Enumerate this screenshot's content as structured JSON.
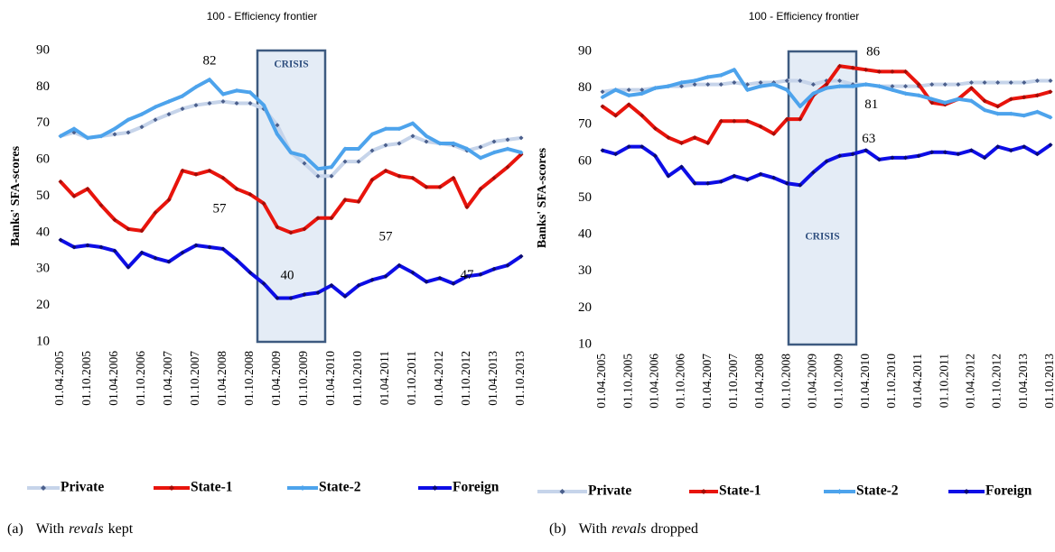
{
  "chart_data": [
    {
      "type": "line",
      "title": "100 - Efficiency frontier",
      "y_label": "Banks' SFA-scores",
      "shaded_label": "CRISIS",
      "caption": [
        "(a)",
        "With",
        "revals",
        "kept"
      ],
      "categories": [
        "01.04.2005",
        null,
        "01.10.2005",
        null,
        "01.04.2006",
        null,
        "01.10.2006",
        null,
        "01.04.2007",
        null,
        "01.10.2007",
        null,
        "01.04.2008",
        null,
        "01.10.2008",
        null,
        "01.04.2009",
        null,
        "01.10.2009",
        null,
        "01.04.2010",
        null,
        "01.10.2010",
        null,
        "01.04.2011",
        null,
        "01.10.2011",
        null,
        "01.04.2012",
        null,
        "01.10.2012",
        null,
        "01.04.2013",
        null,
        "01.10.2013"
      ],
      "ylim": [
        10,
        90
      ],
      "yticks": [
        10,
        20,
        30,
        40,
        50,
        60,
        70,
        80,
        90
      ],
      "grid": false,
      "legend": "bottom",
      "series": [
        {
          "name": "Private",
          "color": "#c6d4ea",
          "marker_color": "#4b5f8c",
          "values": [
            66.5,
            67.5,
            66,
            66.5,
            67,
            67.5,
            69,
            71,
            72.5,
            74,
            75,
            75.5,
            76,
            75.5,
            75.5,
            74,
            69.5,
            62,
            59,
            55.5,
            55.5,
            59.5,
            59.5,
            62.5,
            64,
            64.5,
            66.5,
            65,
            64.5,
            64,
            62.5,
            63.5,
            65,
            65.5,
            66
          ]
        },
        {
          "name": "State-1",
          "color": "#e8140c",
          "marker_color": "#a00d08",
          "label_color": "#e8140c",
          "values": [
            54,
            50,
            52,
            47.5,
            43.5,
            41,
            40.5,
            45.5,
            49,
            57,
            56,
            57,
            55,
            52,
            50.5,
            48,
            41.5,
            40,
            41,
            44,
            44,
            49,
            48.5,
            54.5,
            57,
            55.5,
            55,
            52.5,
            52.5,
            55,
            47,
            52,
            55,
            58,
            61.5
          ],
          "value_labels": [
            null,
            null,
            null,
            null,
            null,
            null,
            null,
            null,
            null,
            null,
            null,
            "57",
            null,
            null,
            null,
            null,
            null,
            "40",
            null,
            null,
            null,
            null,
            null,
            null,
            "57",
            null,
            null,
            null,
            null,
            null,
            "47",
            null,
            null,
            null,
            null
          ]
        },
        {
          "name": "State-2",
          "color": "#4da3ec",
          "marker_color": "#4da3ec",
          "label_color": "#000000",
          "values": [
            66.5,
            68.5,
            66,
            66.5,
            68.5,
            71,
            72.5,
            74.5,
            76,
            77.5,
            80,
            82,
            78,
            79,
            78.5,
            75,
            67,
            62,
            61,
            57.5,
            58,
            63,
            63,
            67,
            68.5,
            68.5,
            70,
            66.5,
            64.5,
            64.5,
            63,
            60.5,
            62,
            63,
            62
          ],
          "value_labels": [
            null,
            null,
            null,
            null,
            null,
            null,
            null,
            null,
            null,
            null,
            null,
            "82",
            null,
            null,
            null,
            null,
            null,
            null,
            null,
            null,
            null,
            null,
            null,
            null,
            null,
            null,
            null,
            null,
            null,
            null,
            null,
            null,
            null,
            null,
            null
          ]
        },
        {
          "name": "Foreign",
          "color": "#0d0de6",
          "marker_color": "#0a0a70",
          "values": [
            38,
            36,
            36.5,
            36,
            35,
            30.5,
            34.5,
            33,
            32,
            34.5,
            36.5,
            36,
            35.5,
            32.5,
            29,
            26,
            22,
            22,
            23,
            23.5,
            25.5,
            22.5,
            25.5,
            27,
            28,
            31,
            29,
            26.5,
            27.5,
            26,
            28,
            28.5,
            30,
            31,
            33.5
          ]
        }
      ]
    },
    {
      "type": "line",
      "title": "100 - Efficiency frontier",
      "y_label": "Banks' SFA-scores",
      "shaded_label": "CRISIS",
      "caption": [
        "(b)",
        "With",
        "revals",
        "dropped"
      ],
      "categories": [
        "01.04.2005",
        null,
        "01.10.2005",
        null,
        "01.04.2006",
        null,
        "01.10.2006",
        null,
        "01.04.2007",
        null,
        "01.10.2007",
        null,
        "01.04.2008",
        null,
        "01.10.2008",
        null,
        "01.04.2009",
        null,
        "01.10.2009",
        null,
        "01.04.2010",
        null,
        "01.10.2010",
        null,
        "01.04.2011",
        null,
        "01.10.2011",
        null,
        "01.04.2012",
        null,
        "01.10.2012",
        null,
        "01.04.2013",
        null,
        "01.10.2013"
      ],
      "ylim": [
        10,
        90
      ],
      "yticks": [
        10,
        20,
        30,
        40,
        50,
        60,
        70,
        80,
        90
      ],
      "grid": false,
      "legend": "bottom",
      "series": [
        {
          "name": "Private",
          "color": "#c6d4ea",
          "marker_color": "#4b5f8c",
          "values": [
            79,
            79.5,
            79.5,
            79.5,
            80,
            80.5,
            80.5,
            81,
            81,
            81,
            81.5,
            81,
            81.5,
            81.5,
            82,
            82,
            81,
            82,
            82,
            81,
            81,
            80.5,
            80.5,
            80.5,
            80.5,
            81,
            81,
            81,
            81.5,
            81.5,
            81.5,
            81.5,
            81.5,
            82,
            82
          ]
        },
        {
          "name": "State-1",
          "color": "#e8140c",
          "marker_color": "#a00d08",
          "label_color": "#e8140c",
          "values": [
            75,
            72.5,
            75.5,
            72.5,
            69,
            66.5,
            65,
            66.5,
            65,
            71,
            71,
            71,
            69.5,
            67.5,
            71.5,
            71.5,
            78,
            81,
            86,
            85.5,
            85,
            84.5,
            84.5,
            84.5,
            81,
            76,
            75.5,
            77,
            80,
            76.5,
            75,
            77,
            77.5,
            78,
            79
          ],
          "value_labels": [
            null,
            null,
            null,
            null,
            null,
            null,
            null,
            null,
            null,
            null,
            null,
            null,
            null,
            null,
            null,
            null,
            null,
            null,
            "86",
            null,
            null,
            null,
            null,
            null,
            null,
            null,
            null,
            null,
            null,
            null,
            null,
            null,
            null,
            null,
            null
          ]
        },
        {
          "name": "State-2",
          "color": "#4da3ec",
          "marker_color": "#4da3ec",
          "label_color": "#4a6fa5",
          "values": [
            77.5,
            79.5,
            78,
            78.5,
            80,
            80.5,
            81.5,
            82,
            83,
            83.5,
            85,
            79.5,
            80.5,
            81,
            79.5,
            75,
            78.5,
            80,
            80.5,
            80.5,
            81,
            80.5,
            79.5,
            78.5,
            78,
            77,
            76,
            77,
            76.5,
            74,
            73,
            73,
            72.5,
            73.5,
            72
          ],
          "value_labels": [
            null,
            null,
            null,
            null,
            null,
            null,
            null,
            null,
            null,
            null,
            null,
            null,
            null,
            null,
            null,
            null,
            null,
            null,
            null,
            null,
            "81",
            null,
            null,
            null,
            null,
            null,
            null,
            null,
            null,
            null,
            null,
            null,
            null,
            null,
            null
          ]
        },
        {
          "name": "Foreign",
          "color": "#0d0de6",
          "marker_color": "#0a0a70",
          "label_color": "#0d0de6",
          "values": [
            63,
            62,
            64,
            64,
            61.5,
            56,
            58.5,
            54,
            54,
            54.5,
            56,
            55,
            56.5,
            55.5,
            54,
            53.5,
            57,
            60,
            61.5,
            62,
            63,
            60.5,
            61,
            61,
            61.5,
            62.5,
            62.5,
            62,
            63,
            61,
            64,
            63,
            64,
            62,
            64.5
          ],
          "value_labels": [
            null,
            null,
            null,
            null,
            null,
            null,
            null,
            null,
            null,
            null,
            null,
            null,
            null,
            null,
            null,
            null,
            null,
            null,
            null,
            null,
            "63",
            null,
            null,
            null,
            null,
            null,
            null,
            null,
            null,
            null,
            null,
            null,
            null,
            null,
            null
          ]
        }
      ]
    }
  ]
}
